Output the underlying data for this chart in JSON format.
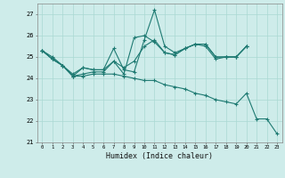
{
  "xlabel": "Humidex (Indice chaleur)",
  "bg_color": "#ceecea",
  "grid_color": "#aad8d2",
  "line_color": "#1e7a72",
  "xlim": [
    -0.5,
    23.5
  ],
  "ylim": [
    21.0,
    27.5
  ],
  "yticks": [
    21,
    22,
    23,
    24,
    25,
    26,
    27
  ],
  "xticks": [
    0,
    1,
    2,
    3,
    4,
    5,
    6,
    7,
    8,
    9,
    10,
    11,
    12,
    13,
    14,
    15,
    16,
    17,
    18,
    19,
    20,
    21,
    22,
    23
  ],
  "xtick_labels": [
    "0",
    "1",
    "2",
    "3",
    "4",
    "5",
    "6",
    "7",
    "8",
    "9",
    "10",
    "11",
    "12",
    "13",
    "14",
    "15",
    "16",
    "17",
    "18",
    "19",
    "20",
    "21",
    "22",
    "23"
  ],
  "series": [
    {
      "x": [
        0,
        1,
        2,
        3,
        4,
        5,
        6,
        7,
        8,
        9,
        10,
        11,
        12,
        13,
        14,
        15,
        16,
        17,
        18,
        19,
        20
      ],
      "y": [
        25.3,
        25.0,
        24.6,
        24.2,
        24.5,
        24.4,
        24.4,
        25.4,
        24.4,
        24.3,
        25.8,
        27.2,
        25.5,
        25.2,
        25.4,
        25.6,
        25.6,
        25.0,
        25.0,
        25.0,
        25.5
      ]
    },
    {
      "x": [
        0,
        1,
        2,
        3,
        4,
        5,
        6,
        7,
        8,
        9,
        10,
        11,
        12,
        13,
        14,
        15,
        16,
        17,
        18,
        19,
        20
      ],
      "y": [
        25.3,
        24.9,
        24.6,
        24.1,
        24.5,
        24.4,
        24.4,
        24.8,
        24.2,
        25.9,
        26.0,
        25.7,
        25.2,
        25.1,
        25.4,
        25.6,
        25.6,
        25.0,
        25.0,
        25.0,
        25.5
      ]
    },
    {
      "x": [
        0,
        1,
        2,
        3,
        4,
        5,
        6,
        7,
        8,
        9,
        10,
        11,
        12,
        13,
        14,
        15,
        16,
        17,
        18,
        19,
        20
      ],
      "y": [
        25.3,
        24.9,
        24.6,
        24.1,
        24.2,
        24.3,
        24.3,
        24.8,
        24.5,
        24.8,
        25.5,
        25.8,
        25.2,
        25.1,
        25.4,
        25.6,
        25.5,
        24.9,
        25.0,
        25.0,
        25.5
      ]
    },
    {
      "x": [
        0,
        1,
        2,
        3,
        4,
        5,
        6,
        7,
        8,
        9,
        10,
        11,
        12,
        13,
        14,
        15,
        16,
        17,
        18,
        19,
        20,
        21,
        22,
        23
      ],
      "y": [
        25.3,
        24.9,
        24.6,
        24.1,
        24.1,
        24.2,
        24.2,
        24.2,
        24.1,
        24.0,
        23.9,
        23.9,
        23.7,
        23.6,
        23.5,
        23.3,
        23.2,
        23.0,
        22.9,
        22.8,
        23.3,
        22.1,
        22.1,
        21.4
      ]
    }
  ]
}
